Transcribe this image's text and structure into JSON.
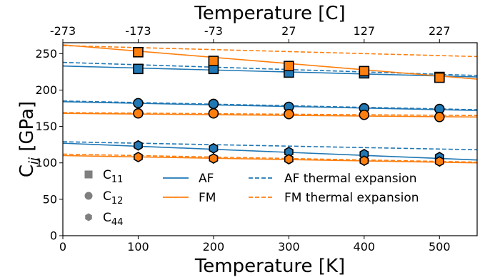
{
  "chart_data": {
    "type": "line",
    "xlabel": "Temperature [K]",
    "ylabel_main": "C",
    "ylabel_sub": "ij",
    "ylabel_unit": "[GPa]",
    "top_xlabel": "Temperature [C]",
    "xlim": [
      0,
      550
    ],
    "ylim": [
      0,
      265
    ],
    "x_ticks": [
      0,
      100,
      200,
      300,
      400,
      500
    ],
    "y_ticks": [
      0,
      50,
      100,
      150,
      200,
      250
    ],
    "top_ticks": [
      {
        "k": 0,
        "label": "-273"
      },
      {
        "k": 100,
        "label": "-173"
      },
      {
        "k": 200,
        "label": "-73"
      },
      {
        "k": 300,
        "label": "27"
      },
      {
        "k": 400,
        "label": "127"
      },
      {
        "k": 500,
        "label": "227"
      }
    ],
    "colors": {
      "AF": "#1f77b4",
      "FM": "#ff7f0e"
    },
    "x": [
      100,
      200,
      300,
      400,
      500
    ],
    "points": [
      {
        "name": "AF C11",
        "phase": "AF",
        "marker": "square",
        "values": [
          229,
          229,
          224,
          223,
          218
        ]
      },
      {
        "name": "FM C11",
        "phase": "FM",
        "marker": "square",
        "values": [
          252,
          240,
          233,
          226,
          217
        ]
      },
      {
        "name": "AF C12",
        "phase": "AF",
        "marker": "circle",
        "values": [
          182,
          181,
          177,
          175,
          174
        ]
      },
      {
        "name": "FM C12",
        "phase": "FM",
        "marker": "circle",
        "values": [
          168,
          168,
          167,
          166,
          163
        ]
      },
      {
        "name": "AF C44",
        "phase": "AF",
        "marker": "hexagon",
        "values": [
          124,
          120,
          115,
          112,
          108
        ]
      },
      {
        "name": "FM C44",
        "phase": "FM",
        "marker": "hexagon",
        "values": [
          108,
          106,
          105,
          103,
          102
        ]
      }
    ],
    "fits": [
      {
        "name": "AF C11 fit",
        "phase": "AF",
        "style": "solid",
        "y0": 233,
        "y1": 218
      },
      {
        "name": "AF C11 thermal expansion",
        "phase": "AF",
        "style": "dashed",
        "y0": 238,
        "y1": 220
      },
      {
        "name": "FM C11 fit",
        "phase": "FM",
        "style": "solid",
        "y0": 262,
        "y1": 215
      },
      {
        "name": "FM C11 thermal expansion",
        "phase": "FM",
        "style": "dashed",
        "y0": 261,
        "y1": 246
      },
      {
        "name": "AF C12 fit",
        "phase": "AF",
        "style": "solid",
        "y0": 184,
        "y1": 172
      },
      {
        "name": "AF C12 thermal expansion",
        "phase": "AF",
        "style": "dashed",
        "y0": 185,
        "y1": 173
      },
      {
        "name": "FM C12 fit",
        "phase": "FM",
        "style": "solid",
        "y0": 168,
        "y1": 163
      },
      {
        "name": "FM C12 thermal expansion",
        "phase": "FM",
        "style": "dashed",
        "y0": 169,
        "y1": 165
      },
      {
        "name": "AF C44 fit",
        "phase": "AF",
        "style": "solid",
        "y0": 127,
        "y1": 104
      },
      {
        "name": "AF C44 thermal expansion",
        "phase": "AF",
        "style": "dashed",
        "y0": 129,
        "y1": 118
      },
      {
        "name": "FM C44 fit",
        "phase": "FM",
        "style": "solid",
        "y0": 110,
        "y1": 100
      },
      {
        "name": "FM C44 thermal expansion",
        "phase": "FM",
        "style": "dashed",
        "y0": 112,
        "y1": 101
      }
    ],
    "legend": {
      "markers": [
        {
          "label_main": "C",
          "label_sub": "11",
          "marker": "square"
        },
        {
          "label_main": "C",
          "label_sub": "12",
          "marker": "circle"
        },
        {
          "label_main": "C",
          "label_sub": "44",
          "marker": "hexagon"
        }
      ],
      "lines": [
        {
          "label": "AF",
          "phase": "AF",
          "style": "solid"
        },
        {
          "label": "FM",
          "phase": "FM",
          "style": "solid"
        },
        {
          "label": "AF thermal expansion",
          "phase": "AF",
          "style": "dashed"
        },
        {
          "label": "FM thermal expansion",
          "phase": "FM",
          "style": "dashed"
        }
      ],
      "placement": "bottom-left"
    }
  }
}
